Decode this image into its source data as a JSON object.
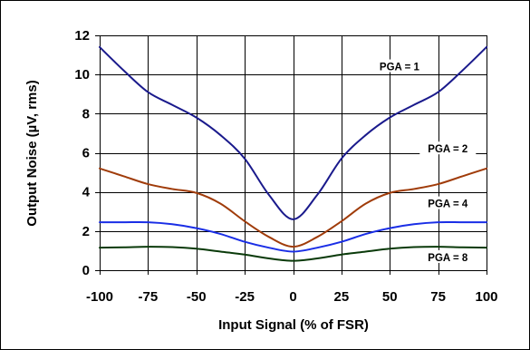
{
  "chart_data": {
    "type": "line",
    "xlabel": "Input Signal (% of FSR)",
    "ylabel": "Output Noise (µV, rms)",
    "xlim": [
      -100,
      100
    ],
    "ylim": [
      0,
      12
    ],
    "xticks": [
      -100,
      -75,
      -50,
      -25,
      0,
      25,
      50,
      75,
      100
    ],
    "yticks": [
      0,
      2,
      4,
      6,
      8,
      10,
      12
    ],
    "grid": true,
    "x": [
      -100,
      -87.5,
      -75,
      -62.5,
      -50,
      -37.5,
      -25,
      -12.5,
      0,
      12.5,
      25,
      37.5,
      50,
      62.5,
      75,
      87.5,
      100
    ],
    "series": [
      {
        "name": "PGA = 1",
        "color": "#1a1a8c",
        "values": [
          11.4,
          10.2,
          9.1,
          8.45,
          7.8,
          6.9,
          5.7,
          3.85,
          2.6,
          3.85,
          5.7,
          6.9,
          7.8,
          8.45,
          9.1,
          10.2,
          11.4
        ]
      },
      {
        "name": "PGA = 2",
        "color": "#a03c0a",
        "values": [
          5.2,
          4.8,
          4.4,
          4.15,
          3.95,
          3.4,
          2.5,
          1.7,
          1.2,
          1.7,
          2.5,
          3.4,
          3.95,
          4.15,
          4.4,
          4.8,
          5.2
        ]
      },
      {
        "name": "PGA = 4",
        "color": "#1a2ee6",
        "values": [
          2.45,
          2.45,
          2.45,
          2.35,
          2.15,
          1.85,
          1.45,
          1.15,
          0.95,
          1.15,
          1.45,
          1.85,
          2.15,
          2.35,
          2.45,
          2.45,
          2.45
        ]
      },
      {
        "name": "PGA = 8",
        "color": "#0a3a0a",
        "values": [
          1.15,
          1.17,
          1.2,
          1.18,
          1.1,
          0.95,
          0.8,
          0.6,
          0.48,
          0.6,
          0.8,
          0.95,
          1.1,
          1.18,
          1.2,
          1.17,
          1.15
        ]
      }
    ],
    "annotations": [
      {
        "text": "PGA = 1",
        "x": 55,
        "y": 10.4
      },
      {
        "text": "PGA = 2",
        "x": 80,
        "y": 6.2
      },
      {
        "text": "PGA = 4",
        "x": 80,
        "y": 3.4
      },
      {
        "text": "PGA = 8",
        "x": 80,
        "y": 0.65
      }
    ]
  }
}
